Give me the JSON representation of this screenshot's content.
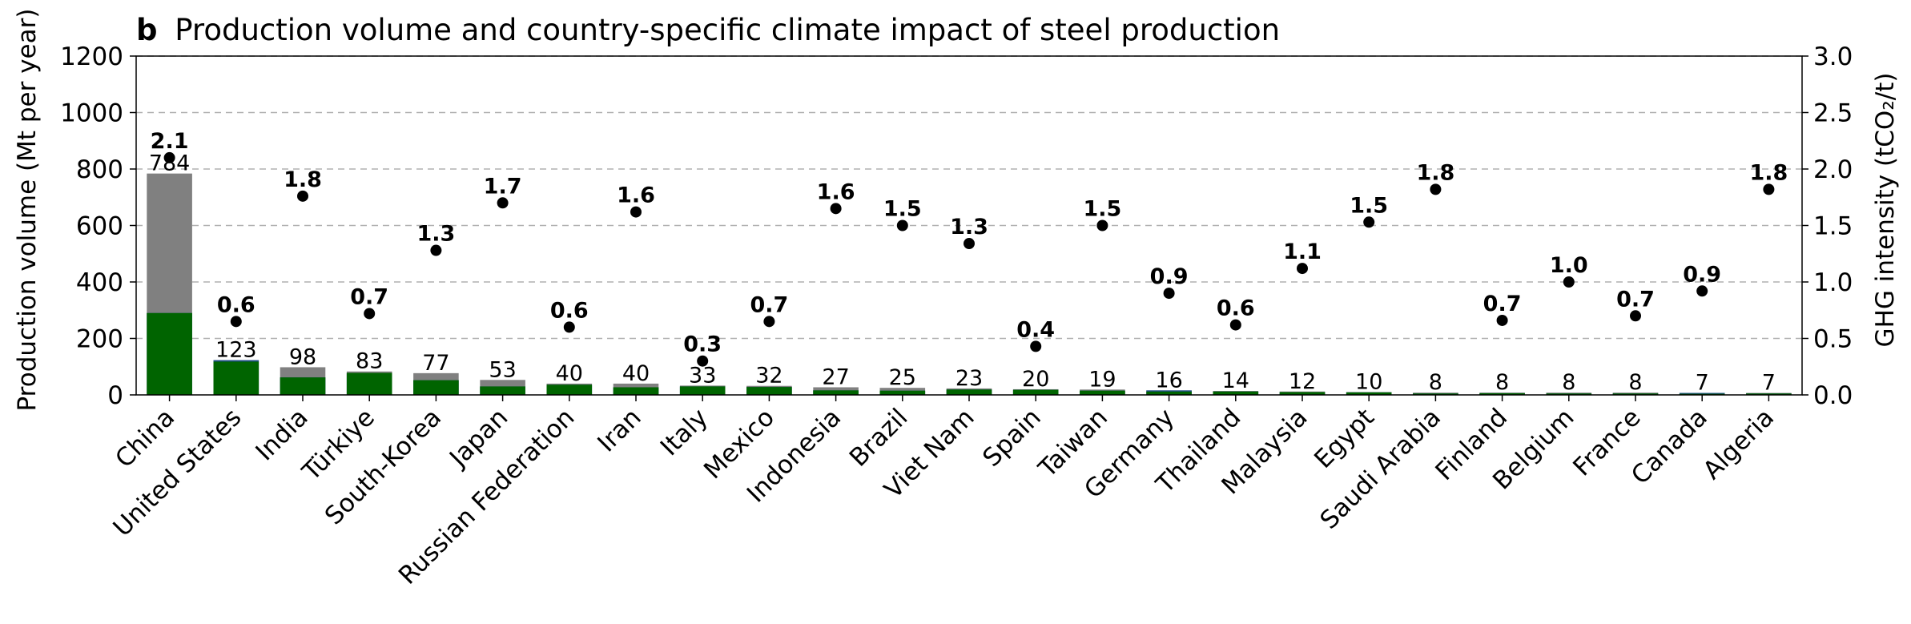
{
  "chart_data": {
    "type": "bar",
    "title_letter": "b",
    "title": "Production volume and country-specific climate impact of steel production",
    "ylabel": "Production volume (Mt per year)",
    "y2label": "GHG intensity (tCO₂/t)",
    "ylim": [
      0,
      1200
    ],
    "y2lim": [
      0,
      3.0
    ],
    "yticks": [
      0,
      200,
      400,
      600,
      800,
      1000,
      1200
    ],
    "y2ticks": [
      "0.0",
      "0.5",
      "1.0",
      "1.5",
      "2.0",
      "2.5",
      "3.0"
    ],
    "grid": "horizontal dashed",
    "categories": [
      "China",
      "United States",
      "India",
      "Türkiye",
      "South-Korea",
      "Japan",
      "Russian Federation",
      "Iran",
      "Italy",
      "Mexico",
      "Indonesia",
      "Brazil",
      "Viet Nam",
      "Spain",
      "Taiwan",
      "Germany",
      "Thailand",
      "Malaysia",
      "Egypt",
      "Saudi Arabia",
      "Finland",
      "Belgium",
      "France",
      "Canada",
      "Algeria"
    ],
    "totals": [
      784,
      123,
      98,
      83,
      77,
      53,
      40,
      40,
      33,
      32,
      27,
      25,
      23,
      20,
      19,
      16,
      14,
      12,
      10,
      8,
      8,
      8,
      8,
      7,
      7
    ],
    "total_labels": [
      "784",
      "123",
      "98",
      "83",
      "77",
      "53",
      "40",
      "40",
      "33",
      "32",
      "27",
      "25",
      "23",
      "20",
      "19",
      "16",
      "14",
      "12",
      "10",
      "8",
      "8",
      "8",
      "8",
      "7",
      "7"
    ],
    "green_values": [
      290,
      118,
      62,
      78,
      52,
      30,
      36,
      27,
      30,
      28,
      16,
      15,
      19,
      18,
      15,
      12,
      12,
      10,
      9,
      5,
      6,
      5,
      5,
      4,
      5
    ],
    "blue_values": [
      0,
      5,
      0,
      0,
      0,
      0,
      0,
      0,
      0,
      0,
      0,
      0,
      0,
      0,
      0,
      4,
      0,
      0,
      0,
      0,
      0,
      0,
      0,
      3,
      0
    ],
    "ghg_intensity": [
      2.1,
      0.65,
      1.76,
      0.72,
      1.28,
      1.7,
      0.6,
      1.62,
      0.3,
      0.65,
      1.65,
      1.5,
      1.34,
      0.43,
      1.5,
      0.9,
      0.62,
      1.12,
      1.53,
      1.82,
      0.66,
      1.0,
      0.7,
      0.92,
      1.82
    ],
    "ghg_labels": [
      "2.1",
      "0.6",
      "1.8",
      "0.7",
      "1.3",
      "1.7",
      "0.6",
      "1.6",
      "0.3",
      "0.7",
      "1.6",
      "1.5",
      "1.3",
      "0.4",
      "1.5",
      "0.9",
      "0.6",
      "1.1",
      "1.5",
      "1.8",
      "0.7",
      "1.0",
      "0.7",
      "0.9",
      "1.8"
    ],
    "colors": {
      "total": "#808080",
      "green": "#006400",
      "blue": "#1f4e8c",
      "point": "#000000",
      "grid": "#b0b0b0"
    }
  }
}
